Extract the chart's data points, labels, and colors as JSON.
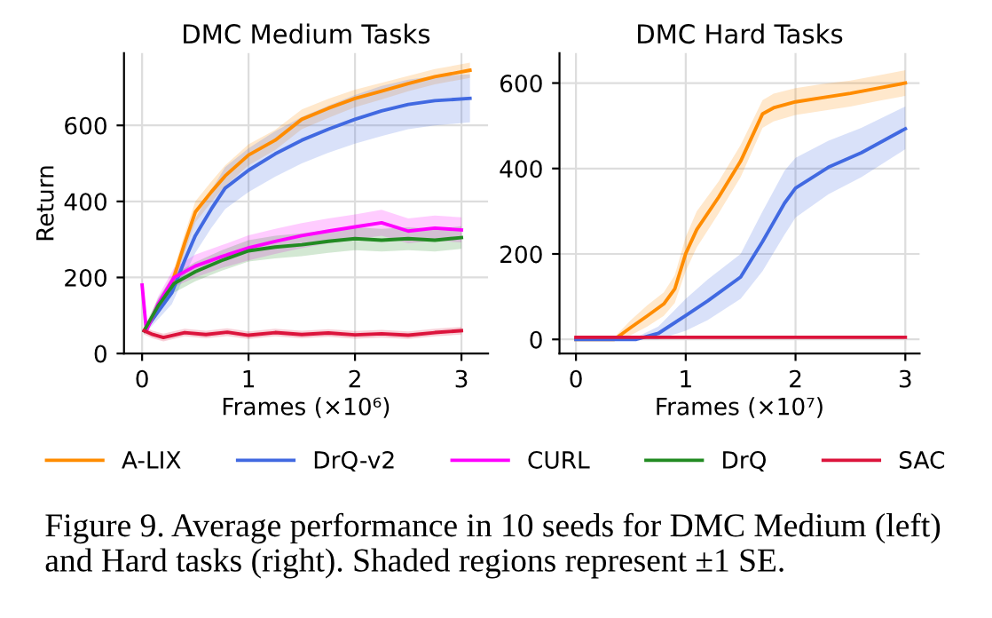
{
  "chart_data": [
    {
      "type": "line",
      "title": "DMC Medium Tasks",
      "xlabel": "Frames (×10⁶)",
      "ylabel": "Return",
      "xlim": [
        -0.17,
        3.25
      ],
      "ylim": [
        0,
        790
      ],
      "xticks": [
        0,
        1,
        2,
        3
      ],
      "yticks": [
        0,
        200,
        400,
        600
      ],
      "grid": true,
      "legend": "bottom",
      "annotations": [
        "Figure 9. Average performance in 10 seeds for DMC Medium (left) and Hard tasks (right). Shaded regions represent ±1 SE."
      ],
      "series": [
        {
          "name": "A-LIX",
          "color": "#ff8c00",
          "x": [
            0.02,
            0.15,
            0.28,
            0.4,
            0.5,
            0.65,
            0.78,
            1.0,
            1.25,
            1.5,
            1.75,
            2.0,
            2.25,
            2.5,
            2.75,
            3.08
          ],
          "values": [
            60,
            120,
            184,
            290,
            372,
            425,
            467,
            522,
            561,
            616,
            645,
            671,
            690,
            710,
            728,
            745
          ],
          "lower": [
            50,
            105,
            165,
            265,
            345,
            398,
            440,
            495,
            535,
            590,
            620,
            648,
            668,
            690,
            708,
            725
          ],
          "upper": [
            70,
            135,
            205,
            315,
            400,
            452,
            495,
            550,
            588,
            642,
            670,
            694,
            712,
            730,
            748,
            765
          ]
        },
        {
          "name": "DrQ-v2",
          "color": "#4169e1",
          "x": [
            0.02,
            0.15,
            0.28,
            0.4,
            0.5,
            0.65,
            0.78,
            1.0,
            1.25,
            1.5,
            1.75,
            2.0,
            2.25,
            2.5,
            2.75,
            3.08
          ],
          "values": [
            60,
            110,
            160,
            245,
            310,
            380,
            435,
            482,
            525,
            561,
            590,
            616,
            638,
            655,
            665,
            671
          ],
          "lower": [
            50,
            90,
            130,
            205,
            265,
            330,
            380,
            425,
            465,
            500,
            528,
            552,
            572,
            590,
            600,
            608
          ],
          "upper": [
            70,
            130,
            190,
            285,
            355,
            430,
            490,
            540,
            585,
            622,
            652,
            680,
            704,
            720,
            730,
            734
          ]
        },
        {
          "name": "CURL",
          "color": "#ff00ff",
          "x": [
            0.0,
            0.04,
            0.15,
            0.3,
            0.5,
            0.75,
            1.0,
            1.25,
            1.5,
            1.75,
            2.0,
            2.25,
            2.5,
            2.75,
            3.0
          ],
          "values": [
            180,
            60,
            130,
            200,
            230,
            255,
            278,
            295,
            310,
            322,
            333,
            344,
            322,
            330,
            325
          ],
          "lower": [
            160,
            50,
            110,
            175,
            200,
            225,
            245,
            262,
            277,
            290,
            300,
            310,
            290,
            297,
            292
          ],
          "upper": [
            200,
            70,
            150,
            225,
            260,
            285,
            311,
            328,
            343,
            355,
            366,
            378,
            355,
            363,
            358
          ]
        },
        {
          "name": "DrQ",
          "color": "#228b22",
          "x": [
            0.02,
            0.15,
            0.3,
            0.5,
            0.75,
            1.0,
            1.25,
            1.5,
            1.75,
            2.0,
            2.25,
            2.5,
            2.75,
            3.0
          ],
          "values": [
            60,
            125,
            184,
            215,
            245,
            270,
            280,
            286,
            295,
            302,
            298,
            302,
            298,
            305
          ],
          "lower": [
            50,
            105,
            160,
            190,
            218,
            242,
            250,
            256,
            265,
            272,
            268,
            272,
            268,
            275
          ],
          "upper": [
            70,
            145,
            208,
            240,
            272,
            298,
            310,
            316,
            325,
            332,
            328,
            332,
            328,
            335
          ]
        },
        {
          "name": "SAC",
          "color": "#dc143c",
          "x": [
            0.02,
            0.1,
            0.2,
            0.4,
            0.6,
            0.8,
            1.0,
            1.25,
            1.5,
            1.75,
            2.0,
            2.25,
            2.5,
            2.75,
            3.0
          ],
          "values": [
            60,
            50,
            42,
            55,
            50,
            56,
            48,
            55,
            50,
            54,
            49,
            52,
            48,
            55,
            60
          ],
          "lower": [
            50,
            40,
            32,
            45,
            40,
            46,
            38,
            45,
            40,
            44,
            39,
            42,
            38,
            45,
            50
          ],
          "upper": [
            70,
            60,
            52,
            65,
            60,
            66,
            58,
            65,
            60,
            64,
            59,
            62,
            58,
            65,
            70
          ]
        }
      ]
    },
    {
      "type": "line",
      "title": "DMC Hard Tasks",
      "xlabel": "Frames (×10⁷)",
      "xlim": [
        -0.15,
        3.13
      ],
      "ylim": [
        -33,
        670
      ],
      "xticks": [
        0,
        1,
        2,
        3
      ],
      "yticks": [
        0,
        200,
        400,
        600
      ],
      "grid": true,
      "series": [
        {
          "color": "#ff8c00",
          "x": [
            0.0,
            0.35,
            0.5,
            0.65,
            0.8,
            0.9,
            1.0,
            1.1,
            1.3,
            1.5,
            1.7,
            1.8,
            2.0,
            2.25,
            2.5,
            2.75,
            3.0
          ],
          "values": [
            0,
            0,
            28,
            55,
            83,
            118,
            201,
            257,
            333,
            417,
            528,
            542,
            556,
            566,
            576,
            588,
            600
          ],
          "lower": [
            0,
            0,
            10,
            30,
            55,
            85,
            160,
            215,
            295,
            380,
            495,
            510,
            525,
            535,
            545,
            558,
            570
          ],
          "upper": [
            0,
            5,
            45,
            80,
            110,
            150,
            240,
            300,
            370,
            455,
            560,
            575,
            588,
            598,
            606,
            618,
            630
          ]
        },
        {
          "color": "#4169e1",
          "x": [
            0.0,
            0.55,
            0.75,
            1.0,
            1.2,
            1.5,
            1.7,
            1.9,
            2.0,
            2.3,
            2.6,
            3.0
          ],
          "values": [
            0,
            0,
            14,
            56,
            90,
            146,
            229,
            319,
            354,
            403,
            437,
            493
          ],
          "lower": [
            0,
            0,
            0,
            20,
            45,
            95,
            160,
            245,
            285,
            340,
            380,
            445
          ],
          "upper": [
            0,
            5,
            30,
            95,
            140,
            200,
            300,
            395,
            425,
            465,
            495,
            545
          ]
        },
        {
          "color": "#dc143c",
          "x": [
            0.0,
            3.0
          ],
          "values": [
            5,
            5
          ]
        }
      ]
    }
  ]
}
